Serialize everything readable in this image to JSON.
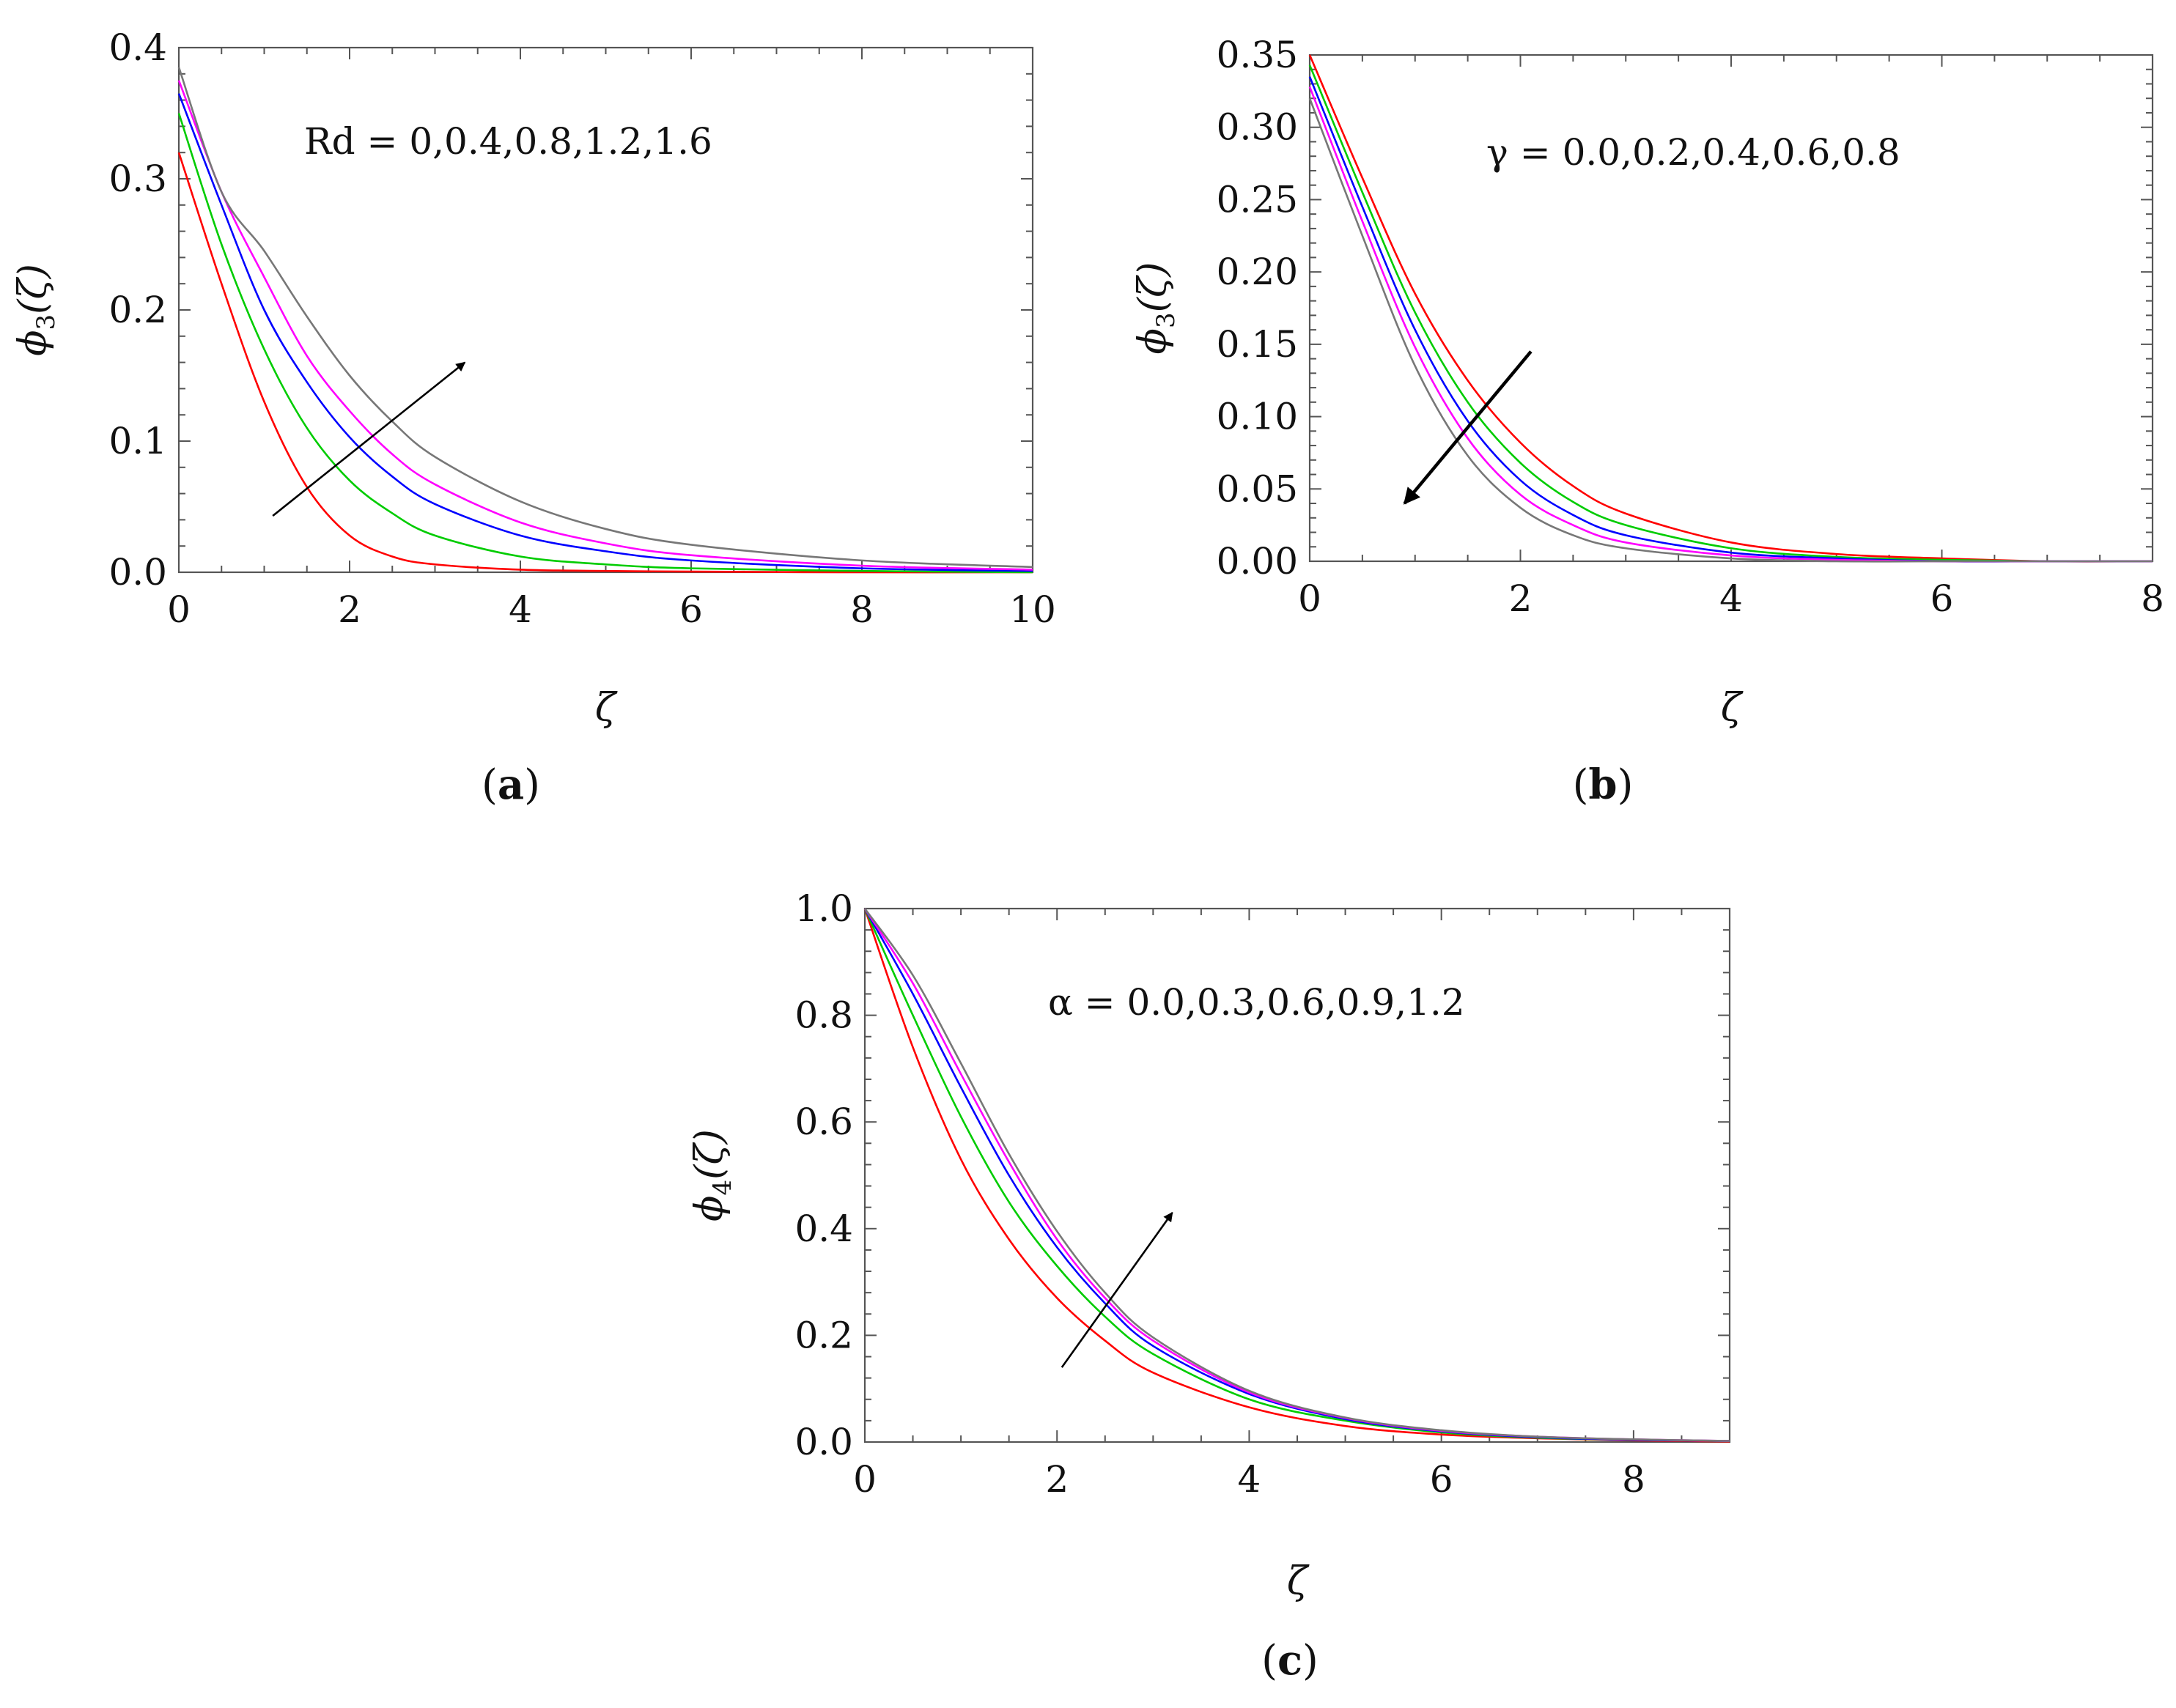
{
  "chart_data": [
    {
      "id": "a",
      "type": "line",
      "panel_label": "(a)",
      "xlabel": "ζ",
      "ylabel_base": "ϕ",
      "ylabel_sub": "3",
      "ylabel_arg": "(ζ)",
      "xlim": [
        0,
        10
      ],
      "ylim": [
        0,
        0.4
      ],
      "xticks": [
        0,
        2,
        4,
        6,
        8,
        10
      ],
      "xtick_labels": [
        "0",
        "2",
        "4",
        "6",
        "8",
        "10"
      ],
      "yticks": [
        0,
        0.1,
        0.2,
        0.3,
        0.4
      ],
      "ytick_labels": [
        "0.0",
        "0.1",
        "0.2",
        "0.3",
        "0.4"
      ],
      "annotation": "Rd = 0,0.4,0.8,1.2,1.6",
      "arrow": {
        "from": [
          1.1,
          0.043
        ],
        "to": [
          3.35,
          0.16
        ]
      },
      "series": [
        {
          "color": "#ff0000",
          "x": [
            0,
            0.5,
            1,
            1.5,
            2,
            2.5,
            3,
            4,
            5,
            6,
            8,
            10
          ],
          "y": [
            0.32,
            0.22,
            0.13,
            0.065,
            0.028,
            0.012,
            0.006,
            0.002,
            0.001,
            0.0005,
            0.0,
            0.0
          ]
        },
        {
          "color": "#00cc00",
          "x": [
            0,
            0.5,
            1,
            1.5,
            2,
            2.5,
            3,
            4,
            5,
            6,
            8,
            10
          ],
          "y": [
            0.35,
            0.25,
            0.17,
            0.11,
            0.07,
            0.045,
            0.028,
            0.012,
            0.006,
            0.003,
            0.001,
            0.0
          ]
        },
        {
          "color": "#0000ff",
          "x": [
            0,
            0.5,
            1,
            1.5,
            2,
            2.5,
            3,
            4,
            5,
            6,
            8,
            10
          ],
          "y": [
            0.365,
            0.28,
            0.2,
            0.145,
            0.103,
            0.073,
            0.052,
            0.028,
            0.016,
            0.009,
            0.003,
            0.001
          ]
        },
        {
          "color": "#ff00ff",
          "x": [
            0,
            0.5,
            1,
            1.5,
            2,
            2.5,
            3,
            4,
            5,
            6,
            8,
            10
          ],
          "y": [
            0.375,
            0.29,
            0.225,
            0.165,
            0.123,
            0.09,
            0.067,
            0.038,
            0.022,
            0.013,
            0.005,
            0.002
          ]
        },
        {
          "color": "#777777",
          "x": [
            0,
            0.5,
            1,
            1.5,
            2,
            2.5,
            3,
            4,
            5,
            6,
            8,
            10
          ],
          "y": [
            0.385,
            0.29,
            0.245,
            0.195,
            0.15,
            0.115,
            0.088,
            0.054,
            0.033,
            0.021,
            0.009,
            0.004
          ]
        }
      ]
    },
    {
      "id": "b",
      "type": "line",
      "panel_label": "(b)",
      "xlabel": "ζ",
      "ylabel_base": "ϕ",
      "ylabel_sub": "3",
      "ylabel_arg": "(ζ)",
      "xlim": [
        0,
        8
      ],
      "ylim": [
        0,
        0.35
      ],
      "xticks": [
        0,
        2,
        4,
        6,
        8
      ],
      "xtick_labels": [
        "0",
        "2",
        "4",
        "6",
        "8"
      ],
      "yticks": [
        0,
        0.05,
        0.1,
        0.15,
        0.2,
        0.25,
        0.3,
        0.35
      ],
      "ytick_labels": [
        "0.00",
        "0.05",
        "0.10",
        "0.15",
        "0.20",
        "0.25",
        "0.30",
        "0.35"
      ],
      "annotation": "γ = 0.0,0.2,0.4,0.6,0.8",
      "arrow": {
        "from": [
          2.1,
          0.145
        ],
        "to": [
          0.9,
          0.04
        ]
      },
      "series": [
        {
          "color": "#ff0000",
          "x": [
            0,
            0.5,
            1,
            1.5,
            2,
            2.5,
            3,
            4,
            5,
            6,
            7,
            8
          ],
          "y": [
            0.35,
            0.265,
            0.185,
            0.125,
            0.082,
            0.052,
            0.033,
            0.013,
            0.005,
            0.002,
            0.0,
            0.0
          ]
        },
        {
          "color": "#00cc00",
          "x": [
            0,
            0.5,
            1,
            1.5,
            2,
            2.5,
            3,
            4,
            5,
            6,
            7,
            8
          ],
          "y": [
            0.343,
            0.255,
            0.172,
            0.11,
            0.068,
            0.041,
            0.025,
            0.009,
            0.003,
            0.001,
            0.0,
            0.0
          ]
        },
        {
          "color": "#0000ff",
          "x": [
            0,
            0.5,
            1,
            1.5,
            2,
            2.5,
            3,
            4,
            5,
            6,
            7,
            8
          ],
          "y": [
            0.335,
            0.245,
            0.16,
            0.097,
            0.056,
            0.032,
            0.018,
            0.006,
            0.002,
            0.0,
            0.0,
            0.0
          ]
        },
        {
          "color": "#ff00ff",
          "x": [
            0,
            0.5,
            1,
            1.5,
            2,
            2.5,
            3,
            4,
            5,
            6,
            7,
            8
          ],
          "y": [
            0.328,
            0.235,
            0.148,
            0.085,
            0.046,
            0.025,
            0.013,
            0.004,
            0.001,
            0.0,
            0.0,
            0.0
          ]
        },
        {
          "color": "#777777",
          "x": [
            0,
            0.5,
            1,
            1.5,
            2,
            2.5,
            3,
            4,
            5,
            6,
            7,
            8
          ],
          "y": [
            0.32,
            0.225,
            0.135,
            0.073,
            0.037,
            0.018,
            0.009,
            0.002,
            0.0,
            0.0,
            0.0,
            0.0
          ]
        }
      ]
    },
    {
      "id": "c",
      "type": "line",
      "panel_label": "(c)",
      "xlabel": "ζ",
      "ylabel_base": "ϕ",
      "ylabel_sub": "4",
      "ylabel_arg": "(ζ)",
      "xlim": [
        0,
        9
      ],
      "ylim": [
        0,
        1.0
      ],
      "xticks": [
        0,
        2,
        4,
        6,
        8
      ],
      "xtick_labels": [
        "0",
        "2",
        "4",
        "6",
        "8"
      ],
      "yticks": [
        0,
        0.2,
        0.4,
        0.6,
        0.8,
        1.0
      ],
      "ytick_labels": [
        "0.0",
        "0.2",
        "0.4",
        "0.6",
        "0.8",
        "1.0"
      ],
      "annotation": "α = 0.0,0.3,0.6,0.9,1.2",
      "arrow": {
        "from": [
          2.05,
          0.14
        ],
        "to": [
          3.2,
          0.43
        ]
      },
      "series": [
        {
          "color": "#ff0000",
          "x": [
            0,
            0.5,
            1,
            1.5,
            2,
            2.5,
            3,
            4,
            5,
            6,
            7,
            8,
            9
          ],
          "y": [
            1.0,
            0.74,
            0.53,
            0.38,
            0.27,
            0.19,
            0.13,
            0.065,
            0.03,
            0.014,
            0.007,
            0.003,
            0.001
          ]
        },
        {
          "color": "#00cc00",
          "x": [
            0,
            0.5,
            1,
            1.5,
            2,
            2.5,
            3,
            4,
            5,
            6,
            7,
            8,
            9
          ],
          "y": [
            1.0,
            0.8,
            0.61,
            0.45,
            0.33,
            0.235,
            0.165,
            0.08,
            0.04,
            0.018,
            0.008,
            0.004,
            0.002
          ]
        },
        {
          "color": "#0000ff",
          "x": [
            0,
            0.5,
            1,
            1.5,
            2,
            2.5,
            3,
            4,
            5,
            6,
            7,
            8,
            9
          ],
          "y": [
            1.0,
            0.84,
            0.665,
            0.5,
            0.365,
            0.26,
            0.18,
            0.09,
            0.043,
            0.02,
            0.009,
            0.004,
            0.002
          ]
        },
        {
          "color": "#ff00ff",
          "x": [
            0,
            0.5,
            1,
            1.5,
            2,
            2.5,
            3,
            4,
            5,
            6,
            7,
            8,
            9
          ],
          "y": [
            1.0,
            0.86,
            0.69,
            0.525,
            0.38,
            0.27,
            0.19,
            0.093,
            0.045,
            0.021,
            0.01,
            0.005,
            0.002
          ]
        },
        {
          "color": "#777777",
          "x": [
            0,
            0.5,
            1,
            1.5,
            2,
            2.5,
            3,
            4,
            5,
            6,
            7,
            8,
            9
          ],
          "y": [
            1.0,
            0.875,
            0.71,
            0.54,
            0.395,
            0.28,
            0.196,
            0.096,
            0.046,
            0.022,
            0.01,
            0.005,
            0.002
          ]
        }
      ]
    }
  ]
}
